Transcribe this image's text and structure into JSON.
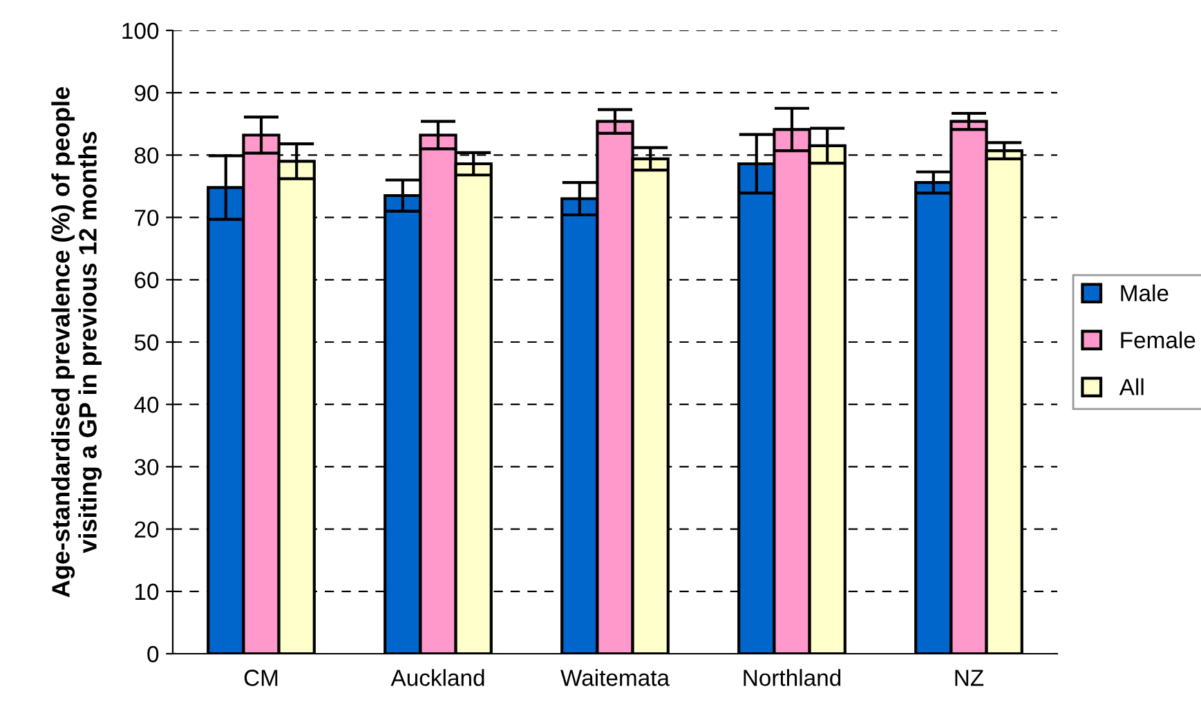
{
  "chart_data": {
    "type": "bar",
    "ylabel": "Age-standardised prevalence (%) of people\nvisiting a GP in previous 12 months",
    "categories": [
      "CM",
      "Auckland",
      "Waitemata",
      "Northland",
      "NZ"
    ],
    "series": [
      {
        "name": "Male",
        "color": "#0066cc",
        "values": [
          74.8,
          73.5,
          73.0,
          78.6,
          75.6
        ],
        "errors": [
          5.1,
          2.5,
          2.6,
          4.7,
          1.7
        ]
      },
      {
        "name": "Female",
        "color": "#ff99cc",
        "values": [
          83.2,
          83.2,
          85.4,
          84.1,
          85.4
        ],
        "errors": [
          2.9,
          2.2,
          1.9,
          3.4,
          1.3
        ]
      },
      {
        "name": "All",
        "color": "#ffffcc",
        "values": [
          79.0,
          78.6,
          79.4,
          81.5,
          80.7
        ],
        "errors": [
          2.8,
          1.8,
          1.8,
          2.8,
          1.3
        ]
      }
    ],
    "ylim": [
      0,
      100
    ],
    "yticks": [
      0,
      10,
      20,
      30,
      40,
      50,
      60,
      70,
      80,
      90,
      100
    ],
    "grid": "y",
    "legend": "right"
  }
}
